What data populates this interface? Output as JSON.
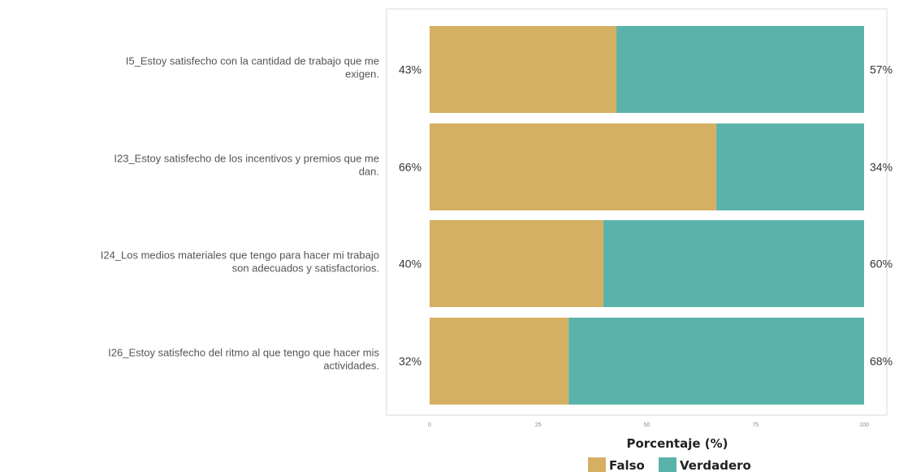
{
  "chart_data": {
    "type": "bar",
    "orientation": "horizontal",
    "stacked": true,
    "categories": [
      [
        "I5_Estoy satisfecho con la cantidad de trabajo que me",
        "exigen."
      ],
      [
        "I23_Estoy satisfecho de los incentivos y premios que me",
        "dan."
      ],
      [
        "I24_Los medios materiales que tengo para hacer mi trabajo",
        "son adecuados y satisfactorios."
      ],
      [
        "I26_Estoy satisfecho del ritmo al que tengo que hacer mis",
        "actividades."
      ]
    ],
    "series": [
      {
        "name": "Falso",
        "color": "#d5b063",
        "values": [
          43,
          66,
          40,
          32
        ],
        "labels": [
          "43%",
          "66%",
          "40%",
          "32%"
        ]
      },
      {
        "name": "Verdadero",
        "color": "#5ab3aa",
        "values": [
          57,
          34,
          60,
          68
        ],
        "labels": [
          "57%",
          "34%",
          "60%",
          "68%"
        ]
      }
    ],
    "xlim": [
      0,
      100
    ],
    "xticks": [
      "0",
      "25",
      "50",
      "75",
      "100"
    ],
    "xlabel": "Porcentaje (%)",
    "legend": "bottom",
    "grid": false
  }
}
